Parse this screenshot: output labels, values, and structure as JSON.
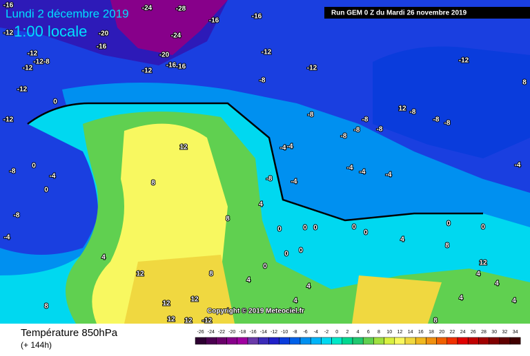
{
  "header": {
    "date": "Lundi 2 décembre 2019",
    "time": "1:00 locale",
    "run": "Run GEM 0 Z du Mardi 26 novembre 2019"
  },
  "copyright": "Copyright © 2019 Meteociel.fr",
  "footer": {
    "title": "Température 850hPa",
    "subtitle": "(+ 144h)"
  },
  "scale": {
    "values": [
      -26,
      -24,
      -22,
      -20,
      -18,
      -16,
      -14,
      -12,
      -10,
      -8,
      -6,
      -4,
      -2,
      0,
      2,
      4,
      6,
      8,
      10,
      12,
      14,
      16,
      18,
      20,
      22,
      24,
      26,
      28,
      30,
      32,
      34
    ],
    "colors": [
      "#2d0031",
      "#4b0050",
      "#690069",
      "#87008a",
      "#a000a0",
      "#6a3aa8",
      "#3b2bb8",
      "#2020c8",
      "#0a3cdc",
      "#0060e8",
      "#0090f0",
      "#00b4f8",
      "#00d8f0",
      "#00e8c8",
      "#00d890",
      "#20c870",
      "#60d050",
      "#a0e040",
      "#d8f040",
      "#f8f860",
      "#f0d840",
      "#f0b820",
      "#f09010",
      "#f06000",
      "#f03000",
      "#e00000",
      "#c00000",
      "#a00000",
      "#800000",
      "#600000",
      "#400000"
    ]
  },
  "contour_labels": [
    "-16",
    "-24",
    "-28",
    "-16",
    "-16",
    "-12",
    "-20",
    "-24",
    "-16",
    "-12",
    "-12-8",
    "-12",
    "-20",
    "-16",
    "-16",
    "-12",
    "-12",
    "-12",
    "-12",
    "-8",
    "-12",
    "-12",
    "-8",
    "-8",
    "-4",
    "0",
    "0",
    "-4",
    "0",
    "12",
    "8",
    "8",
    "4",
    "4",
    "12",
    "8",
    "8",
    "12",
    "12",
    "12",
    "12",
    "12",
    "-8",
    "-8",
    "-8",
    "-8",
    "-8",
    "-8",
    "-8",
    "-8",
    "-4",
    "-4",
    "-4",
    "-4",
    "-4",
    "-4",
    "-4",
    "-8",
    "0",
    "0",
    "0",
    "0",
    "0",
    "0",
    "0",
    "4",
    "8",
    "0",
    "0",
    "0",
    "4",
    "4",
    "4",
    "4",
    "8",
    "12",
    "4",
    "4",
    "4",
    "8",
    "-12"
  ]
}
